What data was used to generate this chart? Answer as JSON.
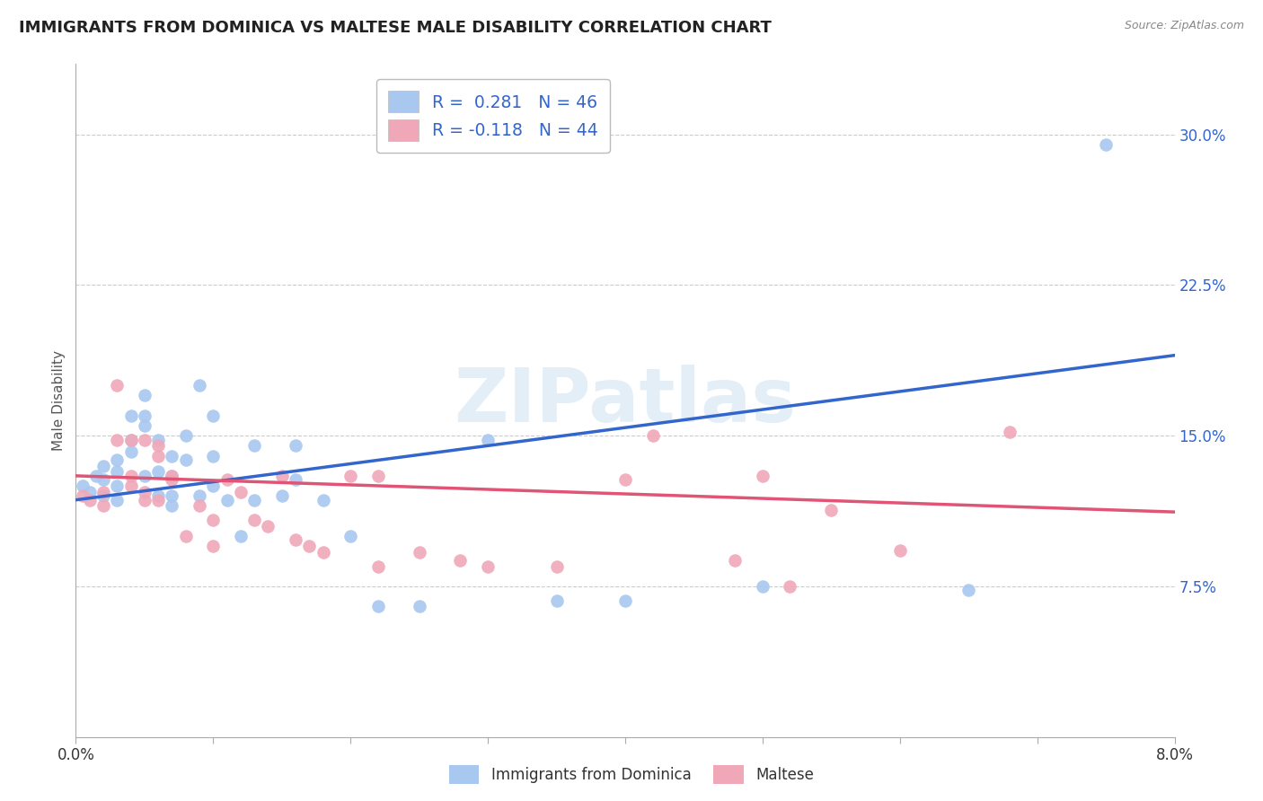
{
  "title": "IMMIGRANTS FROM DOMINICA VS MALTESE MALE DISABILITY CORRELATION CHART",
  "source": "Source: ZipAtlas.com",
  "ylabel": "Male Disability",
  "right_yticks": [
    0.075,
    0.15,
    0.225,
    0.3
  ],
  "right_yticklabels": [
    "7.5%",
    "15.0%",
    "22.5%",
    "30.0%"
  ],
  "blue_color": "#a8c8f0",
  "pink_color": "#f0a8b8",
  "blue_line_color": "#3366cc",
  "pink_line_color": "#e05575",
  "watermark": "ZIPatlas",
  "dominica_scatter": [
    [
      0.0005,
      0.125
    ],
    [
      0.001,
      0.122
    ],
    [
      0.0015,
      0.13
    ],
    [
      0.002,
      0.128
    ],
    [
      0.002,
      0.135
    ],
    [
      0.002,
      0.12
    ],
    [
      0.003,
      0.118
    ],
    [
      0.003,
      0.125
    ],
    [
      0.003,
      0.132
    ],
    [
      0.003,
      0.138
    ],
    [
      0.004,
      0.148
    ],
    [
      0.004,
      0.142
    ],
    [
      0.004,
      0.16
    ],
    [
      0.005,
      0.17
    ],
    [
      0.005,
      0.13
    ],
    [
      0.005,
      0.155
    ],
    [
      0.005,
      0.16
    ],
    [
      0.006,
      0.12
    ],
    [
      0.006,
      0.132
    ],
    [
      0.006,
      0.148
    ],
    [
      0.007,
      0.115
    ],
    [
      0.007,
      0.12
    ],
    [
      0.007,
      0.13
    ],
    [
      0.007,
      0.14
    ],
    [
      0.008,
      0.138
    ],
    [
      0.008,
      0.15
    ],
    [
      0.009,
      0.12
    ],
    [
      0.009,
      0.175
    ],
    [
      0.01,
      0.125
    ],
    [
      0.01,
      0.14
    ],
    [
      0.01,
      0.16
    ],
    [
      0.011,
      0.118
    ],
    [
      0.012,
      0.1
    ],
    [
      0.013,
      0.118
    ],
    [
      0.013,
      0.145
    ],
    [
      0.015,
      0.12
    ],
    [
      0.016,
      0.128
    ],
    [
      0.016,
      0.145
    ],
    [
      0.018,
      0.118
    ],
    [
      0.02,
      0.1
    ],
    [
      0.022,
      0.065
    ],
    [
      0.025,
      0.065
    ],
    [
      0.03,
      0.148
    ],
    [
      0.035,
      0.068
    ],
    [
      0.04,
      0.068
    ],
    [
      0.05,
      0.075
    ],
    [
      0.065,
      0.073
    ],
    [
      0.075,
      0.295
    ]
  ],
  "maltese_scatter": [
    [
      0.0005,
      0.12
    ],
    [
      0.001,
      0.118
    ],
    [
      0.002,
      0.122
    ],
    [
      0.002,
      0.115
    ],
    [
      0.003,
      0.175
    ],
    [
      0.003,
      0.148
    ],
    [
      0.004,
      0.148
    ],
    [
      0.004,
      0.13
    ],
    [
      0.004,
      0.125
    ],
    [
      0.005,
      0.148
    ],
    [
      0.005,
      0.118
    ],
    [
      0.005,
      0.122
    ],
    [
      0.006,
      0.145
    ],
    [
      0.006,
      0.14
    ],
    [
      0.006,
      0.118
    ],
    [
      0.007,
      0.128
    ],
    [
      0.007,
      0.13
    ],
    [
      0.008,
      0.1
    ],
    [
      0.009,
      0.115
    ],
    [
      0.01,
      0.108
    ],
    [
      0.01,
      0.095
    ],
    [
      0.011,
      0.128
    ],
    [
      0.012,
      0.122
    ],
    [
      0.013,
      0.108
    ],
    [
      0.014,
      0.105
    ],
    [
      0.015,
      0.13
    ],
    [
      0.016,
      0.098
    ],
    [
      0.017,
      0.095
    ],
    [
      0.018,
      0.092
    ],
    [
      0.02,
      0.13
    ],
    [
      0.022,
      0.13
    ],
    [
      0.022,
      0.085
    ],
    [
      0.025,
      0.092
    ],
    [
      0.028,
      0.088
    ],
    [
      0.03,
      0.085
    ],
    [
      0.035,
      0.085
    ],
    [
      0.04,
      0.128
    ],
    [
      0.042,
      0.15
    ],
    [
      0.048,
      0.088
    ],
    [
      0.05,
      0.13
    ],
    [
      0.052,
      0.075
    ],
    [
      0.055,
      0.113
    ],
    [
      0.06,
      0.093
    ],
    [
      0.068,
      0.152
    ]
  ],
  "xlim": [
    0.0,
    0.08
  ],
  "ylim": [
    0.0,
    0.335
  ],
  "blue_trend_x": [
    0.0,
    0.08
  ],
  "blue_trend_y": [
    0.118,
    0.19
  ],
  "pink_trend_x": [
    0.0,
    0.08
  ],
  "pink_trend_y": [
    0.13,
    0.112
  ]
}
